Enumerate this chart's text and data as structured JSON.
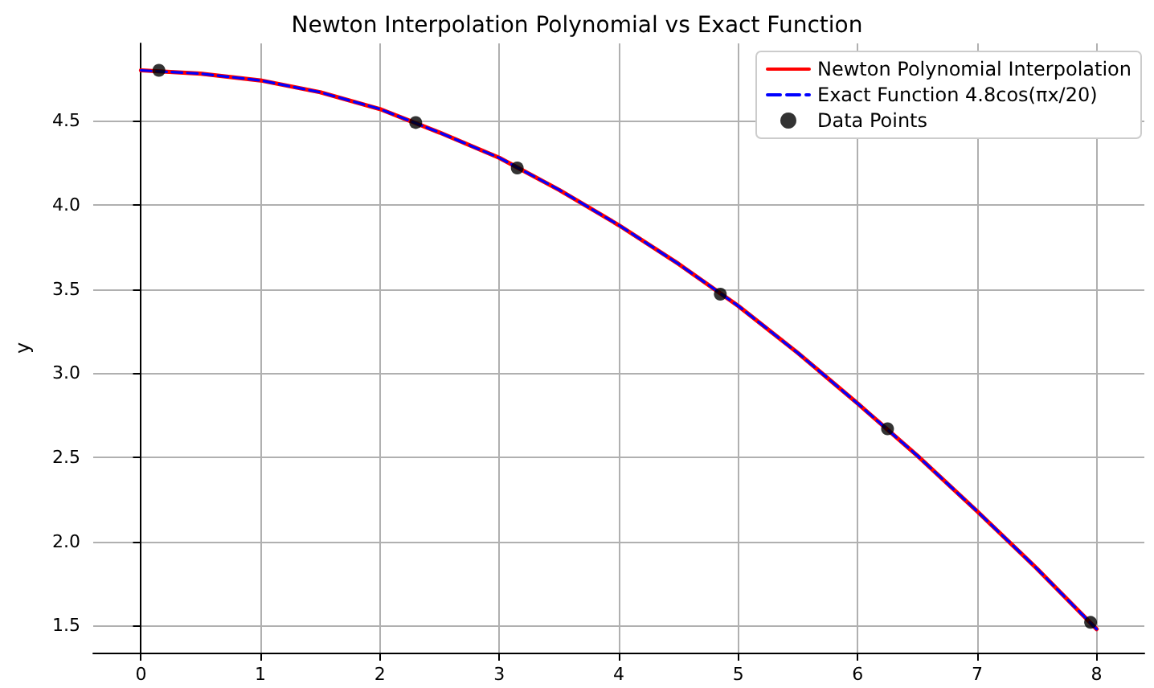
{
  "chart_data": {
    "type": "line",
    "title": "Newton Interpolation Polynomial vs Exact Function",
    "ylabel": "y",
    "xlim": [
      -0.4,
      8.4
    ],
    "ylim": [
      1.34,
      4.96
    ],
    "xticks": [
      0,
      1,
      2,
      3,
      4,
      5,
      6,
      7,
      8
    ],
    "yticks": [
      1.5,
      {
        "value": 2,
        "label": "2.0"
      },
      2.5,
      {
        "value": 3,
        "label": "3.0"
      },
      3.5,
      {
        "value": 4,
        "label": "4.0"
      },
      4.5
    ],
    "grid": true,
    "legend": "top right",
    "series": [
      {
        "name": "Newton Polynomial Interpolation",
        "color": "#ff0000",
        "line_style": "solid",
        "marker": "none",
        "x": [
          0,
          0.5,
          1,
          1.5,
          2,
          2.5,
          3,
          3.5,
          4,
          4.5,
          5,
          5.5,
          6,
          6.5,
          7,
          7.5,
          8
        ],
        "values": [
          4.8,
          4.78,
          4.74,
          4.67,
          4.57,
          4.43,
          4.28,
          4.09,
          3.88,
          3.65,
          3.4,
          3.12,
          2.82,
          2.51,
          2.18,
          1.84,
          1.48
        ]
      },
      {
        "name": "Exact Function 4.8cos(πx/20)",
        "color": "#0000ff",
        "line_style": "dashed",
        "marker": "none",
        "x": [
          0,
          0.5,
          1,
          1.5,
          2,
          2.5,
          3,
          3.5,
          4,
          4.5,
          5,
          5.5,
          6,
          6.5,
          7,
          7.5,
          8
        ],
        "values": [
          4.8,
          4.78,
          4.74,
          4.67,
          4.57,
          4.43,
          4.28,
          4.09,
          3.88,
          3.65,
          3.4,
          3.12,
          2.82,
          2.51,
          2.18,
          1.84,
          1.48
        ]
      },
      {
        "name": "Data Points",
        "type": "scatter",
        "color": "#000000",
        "marker": "circle",
        "x": [
          0.15,
          2.3,
          3.15,
          4.85,
          6.25,
          7.95
        ],
        "values": [
          4.8,
          4.49,
          4.22,
          3.47,
          2.67,
          1.52
        ]
      }
    ]
  }
}
